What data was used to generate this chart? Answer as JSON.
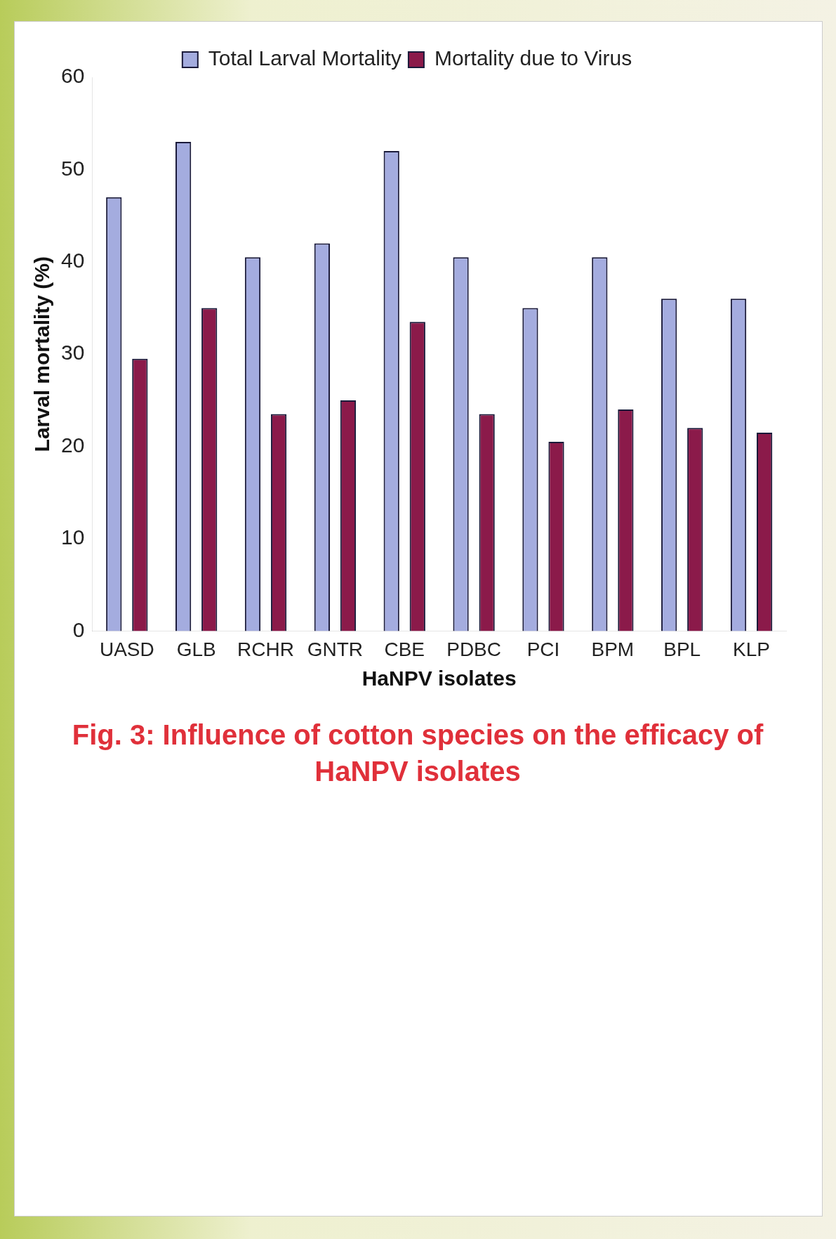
{
  "chart_data": {
    "type": "bar",
    "title": "Fig. 3: Influence of cotton species on the efficacy of HaNPV isolates",
    "xlabel": "HaNPV isolates",
    "ylabel": "Larval mortality (%)",
    "categories": [
      "UASD",
      "GLB",
      "RCHR",
      "GNTR",
      "CBE",
      "PDBC",
      "PCI",
      "BPM",
      "BPL",
      "KLP"
    ],
    "series": [
      {
        "name": "Total Larval Mortality",
        "color": "#a4acdf",
        "values": [
          47,
          53,
          40.5,
          42,
          52,
          40.5,
          35,
          40.5,
          36,
          36
        ]
      },
      {
        "name": "Mortality due to Virus",
        "color": "#8b1a4a",
        "values": [
          29.5,
          35,
          23.5,
          25,
          33.5,
          23.5,
          20.5,
          24,
          22,
          21.5
        ]
      }
    ],
    "ylim": [
      0,
      60
    ],
    "yticks": [
      0,
      10,
      20,
      30,
      40,
      50,
      60
    ],
    "legend": "top"
  }
}
